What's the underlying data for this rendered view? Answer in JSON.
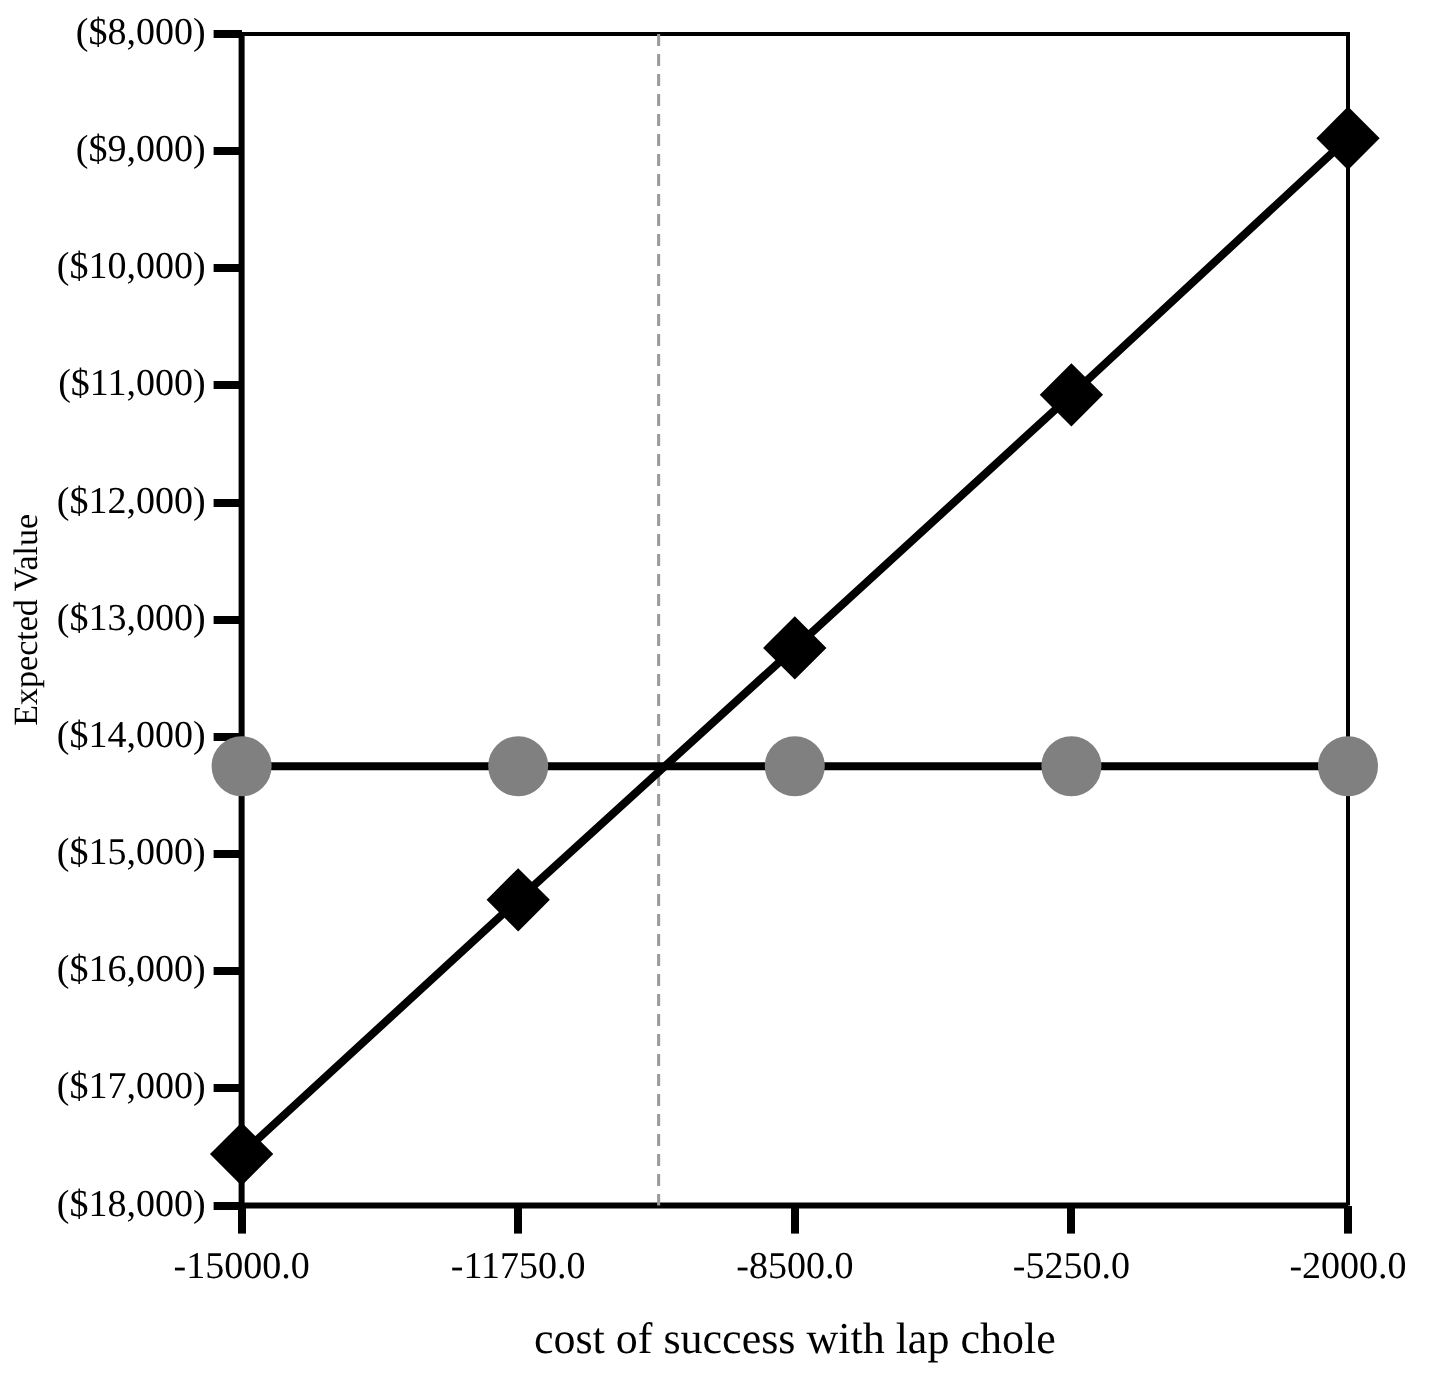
{
  "chart_data": {
    "type": "line",
    "xlabel": "cost of success with lap chole",
    "ylabel": "Expected Value",
    "x": [
      -15000,
      -11750,
      -8500,
      -5250,
      -2000
    ],
    "series": [
      {
        "color": "#000000",
        "marker": "diamond",
        "values": [
          -17560,
          -15390,
          -13240,
          -11080,
          -8890
        ]
      },
      {
        "color": "#808080",
        "marker": "circle",
        "values": [
          -14250,
          -14250,
          -14250,
          -14250,
          -14250
        ]
      }
    ],
    "xlim": [
      -15000,
      -2000
    ],
    "xticks": [
      {
        "value": -15000,
        "label": "-15000.0"
      },
      {
        "value": -11750,
        "label": "-11750.0"
      },
      {
        "value": -8500,
        "label": "-8500.0"
      },
      {
        "value": -5250,
        "label": "-5250.0"
      },
      {
        "value": -2000,
        "label": "-2000.0"
      }
    ],
    "ylim": [
      -18000,
      -8000
    ],
    "yticks": [
      {
        "value": -18000,
        "label": "($18,000)"
      },
      {
        "value": -17000,
        "label": "($17,000)"
      },
      {
        "value": -16000,
        "label": "($16,000)"
      },
      {
        "value": -15000,
        "label": "($15,000)"
      },
      {
        "value": -14000,
        "label": "($14,000)"
      },
      {
        "value": -13000,
        "label": "($13,000)"
      },
      {
        "value": -12000,
        "label": "($12,000)"
      },
      {
        "value": -11000,
        "label": "($11,000)"
      },
      {
        "value": -10000,
        "label": "($10,000)"
      },
      {
        "value": -9000,
        "label": "($9,000)"
      },
      {
        "value": -8000,
        "label": "($8,000)"
      }
    ],
    "ref_lines": [
      {
        "axis": "x",
        "value": -10100,
        "color": "#999999",
        "line_style": "dashed"
      }
    ],
    "grid": false,
    "legend": false,
    "line_style": "solid"
  }
}
